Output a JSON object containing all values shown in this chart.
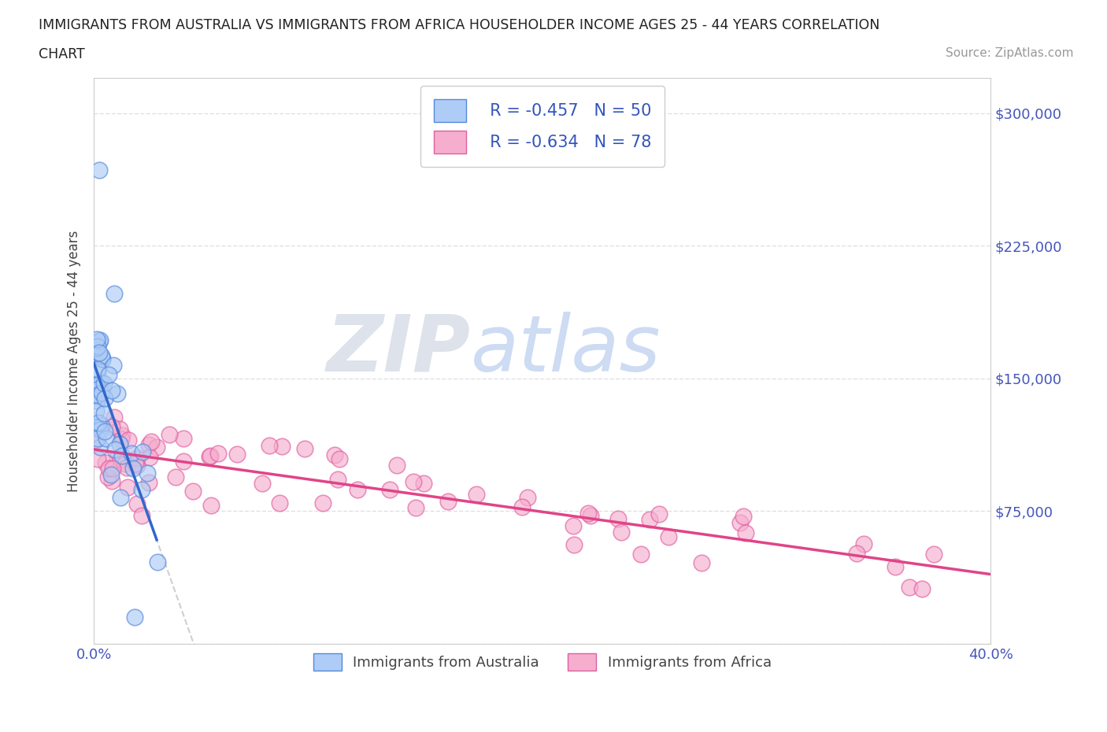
{
  "title_line1": "IMMIGRANTS FROM AUSTRALIA VS IMMIGRANTS FROM AFRICA HOUSEHOLDER INCOME AGES 25 - 44 YEARS CORRELATION",
  "title_line2": "CHART",
  "source": "Source: ZipAtlas.com",
  "ylabel": "Householder Income Ages 25 - 44 years",
  "xlim": [
    0.0,
    0.4
  ],
  "ylim": [
    0,
    320000
  ],
  "yticks": [
    0,
    75000,
    150000,
    225000,
    300000
  ],
  "ytick_labels": [
    "",
    "$75,000",
    "$150,000",
    "$225,000",
    "$300,000"
  ],
  "xtick_positions": [
    0.0,
    0.1,
    0.2,
    0.3,
    0.4
  ],
  "xtick_labels": [
    "0.0%",
    "",
    "",
    "",
    "40.0%"
  ],
  "aus_color": "#aeccf5",
  "aus_edge_color": "#5588dd",
  "aus_line_color": "#3366cc",
  "africa_color": "#f5aece",
  "africa_edge_color": "#e060a0",
  "africa_line_color": "#e04488",
  "R_aus": -0.457,
  "N_aus": 50,
  "R_africa": -0.634,
  "N_africa": 78,
  "legend_label_aus": "Immigrants from Australia",
  "legend_label_africa": "Immigrants from Africa",
  "watermark_zip": "ZIP",
  "watermark_atlas": "atlas",
  "seed_aus": 42,
  "seed_africa": 99
}
